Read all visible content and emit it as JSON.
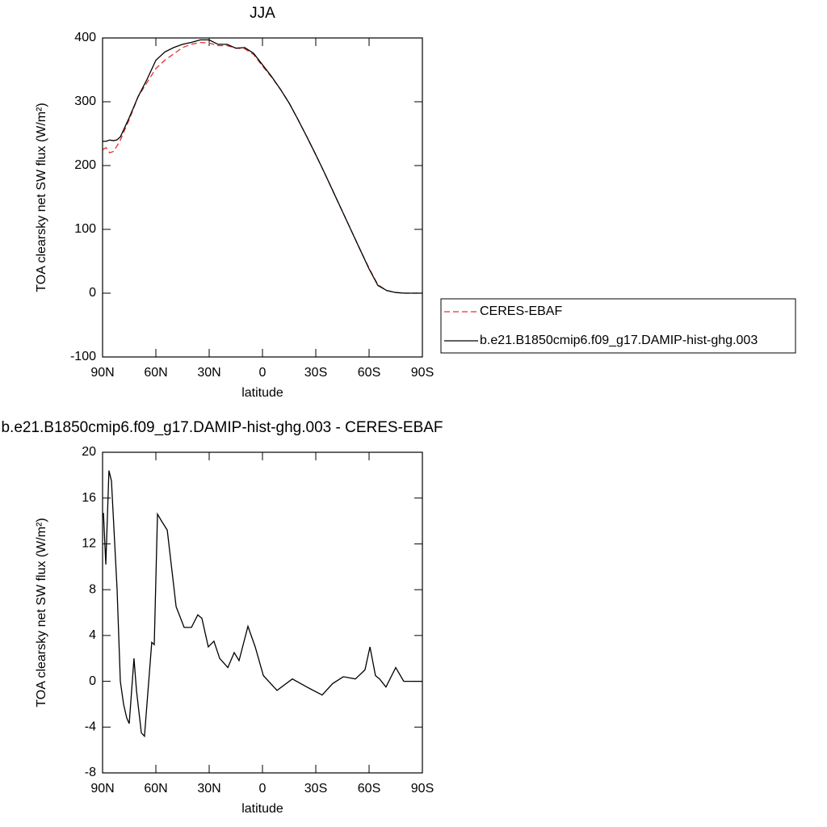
{
  "chart_data": [
    {
      "type": "line",
      "title": "JJA",
      "xlabel": "latitude",
      "ylabel": "TOA clearsky net SW flux (W/m²)",
      "x": [
        90,
        88,
        86,
        84,
        82,
        80,
        75,
        70,
        65,
        60,
        55,
        50,
        45,
        40,
        35,
        30,
        25,
        20,
        15,
        10,
        5,
        0,
        -5,
        -10,
        -15,
        -20,
        -25,
        -30,
        -35,
        -40,
        -45,
        -50,
        -55,
        -60,
        -65,
        -70,
        -75,
        -80,
        -85,
        -90
      ],
      "series": [
        {
          "name": "CERES-EBAF",
          "color": "#e8302a",
          "dashed": true,
          "values": [
            225,
            228,
            220,
            222,
            230,
            240,
            272,
            308,
            330,
            352,
            365,
            375,
            385,
            390,
            393,
            392,
            388,
            388,
            384,
            383,
            374,
            356,
            339,
            320,
            298,
            272,
            245,
            217,
            188,
            158,
            128,
            98,
            68,
            39,
            13,
            4,
            1,
            0,
            0,
            0
          ]
        },
        {
          "name": "b.e21.B1850cmip6.f09_g17.DAMIP-hist-ghg.003",
          "color": "#000000",
          "dashed": false,
          "values": [
            238,
            238,
            240,
            239,
            240,
            245,
            275,
            308,
            335,
            365,
            378,
            385,
            390,
            393,
            397,
            397,
            390,
            390,
            384,
            385,
            376,
            358,
            340,
            320,
            298,
            272,
            245,
            217,
            188,
            158,
            128,
            98,
            68,
            38,
            12,
            4,
            1,
            0,
            0,
            0
          ]
        }
      ],
      "xlim": [
        90,
        -90
      ],
      "xticks": [
        {
          "value": 90,
          "label": "90N"
        },
        {
          "value": 60,
          "label": "60N"
        },
        {
          "value": 30,
          "label": "30N"
        },
        0,
        {
          "value": -30,
          "label": "30S"
        },
        {
          "value": -60,
          "label": "60S"
        },
        {
          "value": -90,
          "label": "90S"
        }
      ],
      "ylim": [
        -100,
        400
      ],
      "yticks": [
        -100,
        0,
        100,
        200,
        300,
        400
      ],
      "legend": "right"
    },
    {
      "type": "line",
      "title": "b.e21.B1850cmip6.f09_g17.DAMIP-hist-ghg.003 - CERES-EBAF",
      "xlabel": "latitude",
      "ylabel": "TOA clearsky net SW flux (W/m²)",
      "x": [
        89.5,
        88.2,
        86.4,
        85,
        81.8,
        80,
        78.2,
        76.4,
        75,
        72.3,
        70.9,
        68.2,
        66.4,
        62.3,
        60.9,
        59.1,
        56.8,
        53.6,
        48.6,
        46.8,
        44.1,
        40,
        36.4,
        34.1,
        30.5,
        27.3,
        24.1,
        19.5,
        15.9,
        13.2,
        8.2,
        4.1,
        -0.5,
        -8.2,
        -16.8,
        -25,
        -33.6,
        -39.5,
        -45.5,
        -52.3,
        -57.7,
        -60.5,
        -63.6,
        -65.9,
        -69.5,
        -75,
        -79.5,
        -90
      ],
      "series": [
        {
          "color": "#000000",
          "dashed": false,
          "values": [
            14.7,
            10.2,
            18.4,
            17.5,
            8,
            0,
            -2,
            -3.2,
            -3.7,
            2,
            -0.8,
            -4.5,
            -4.8,
            3.4,
            3.2,
            14.6,
            14,
            13.2,
            6.5,
            5.8,
            4.7,
            4.7,
            5.8,
            5.5,
            3,
            3.5,
            2,
            1.2,
            2.5,
            1.8,
            4.8,
            3,
            0.5,
            -0.8,
            0.2,
            -0.5,
            -1.2,
            -0.2,
            0.4,
            0.2,
            1,
            3,
            0.5,
            0.2,
            -0.5,
            1.2,
            0,
            0
          ]
        }
      ],
      "xlim": [
        90,
        -90
      ],
      "xticks": [
        {
          "value": 90,
          "label": "90N"
        },
        {
          "value": 60,
          "label": "60N"
        },
        {
          "value": 30,
          "label": "30N"
        },
        0,
        {
          "value": -30,
          "label": "30S"
        },
        {
          "value": -60,
          "label": "60S"
        },
        {
          "value": -90,
          "label": "90S"
        }
      ],
      "ylim": [
        -8,
        20
      ],
      "yticks": [
        -8,
        -4,
        0,
        4,
        8,
        12,
        16,
        20
      ]
    }
  ]
}
